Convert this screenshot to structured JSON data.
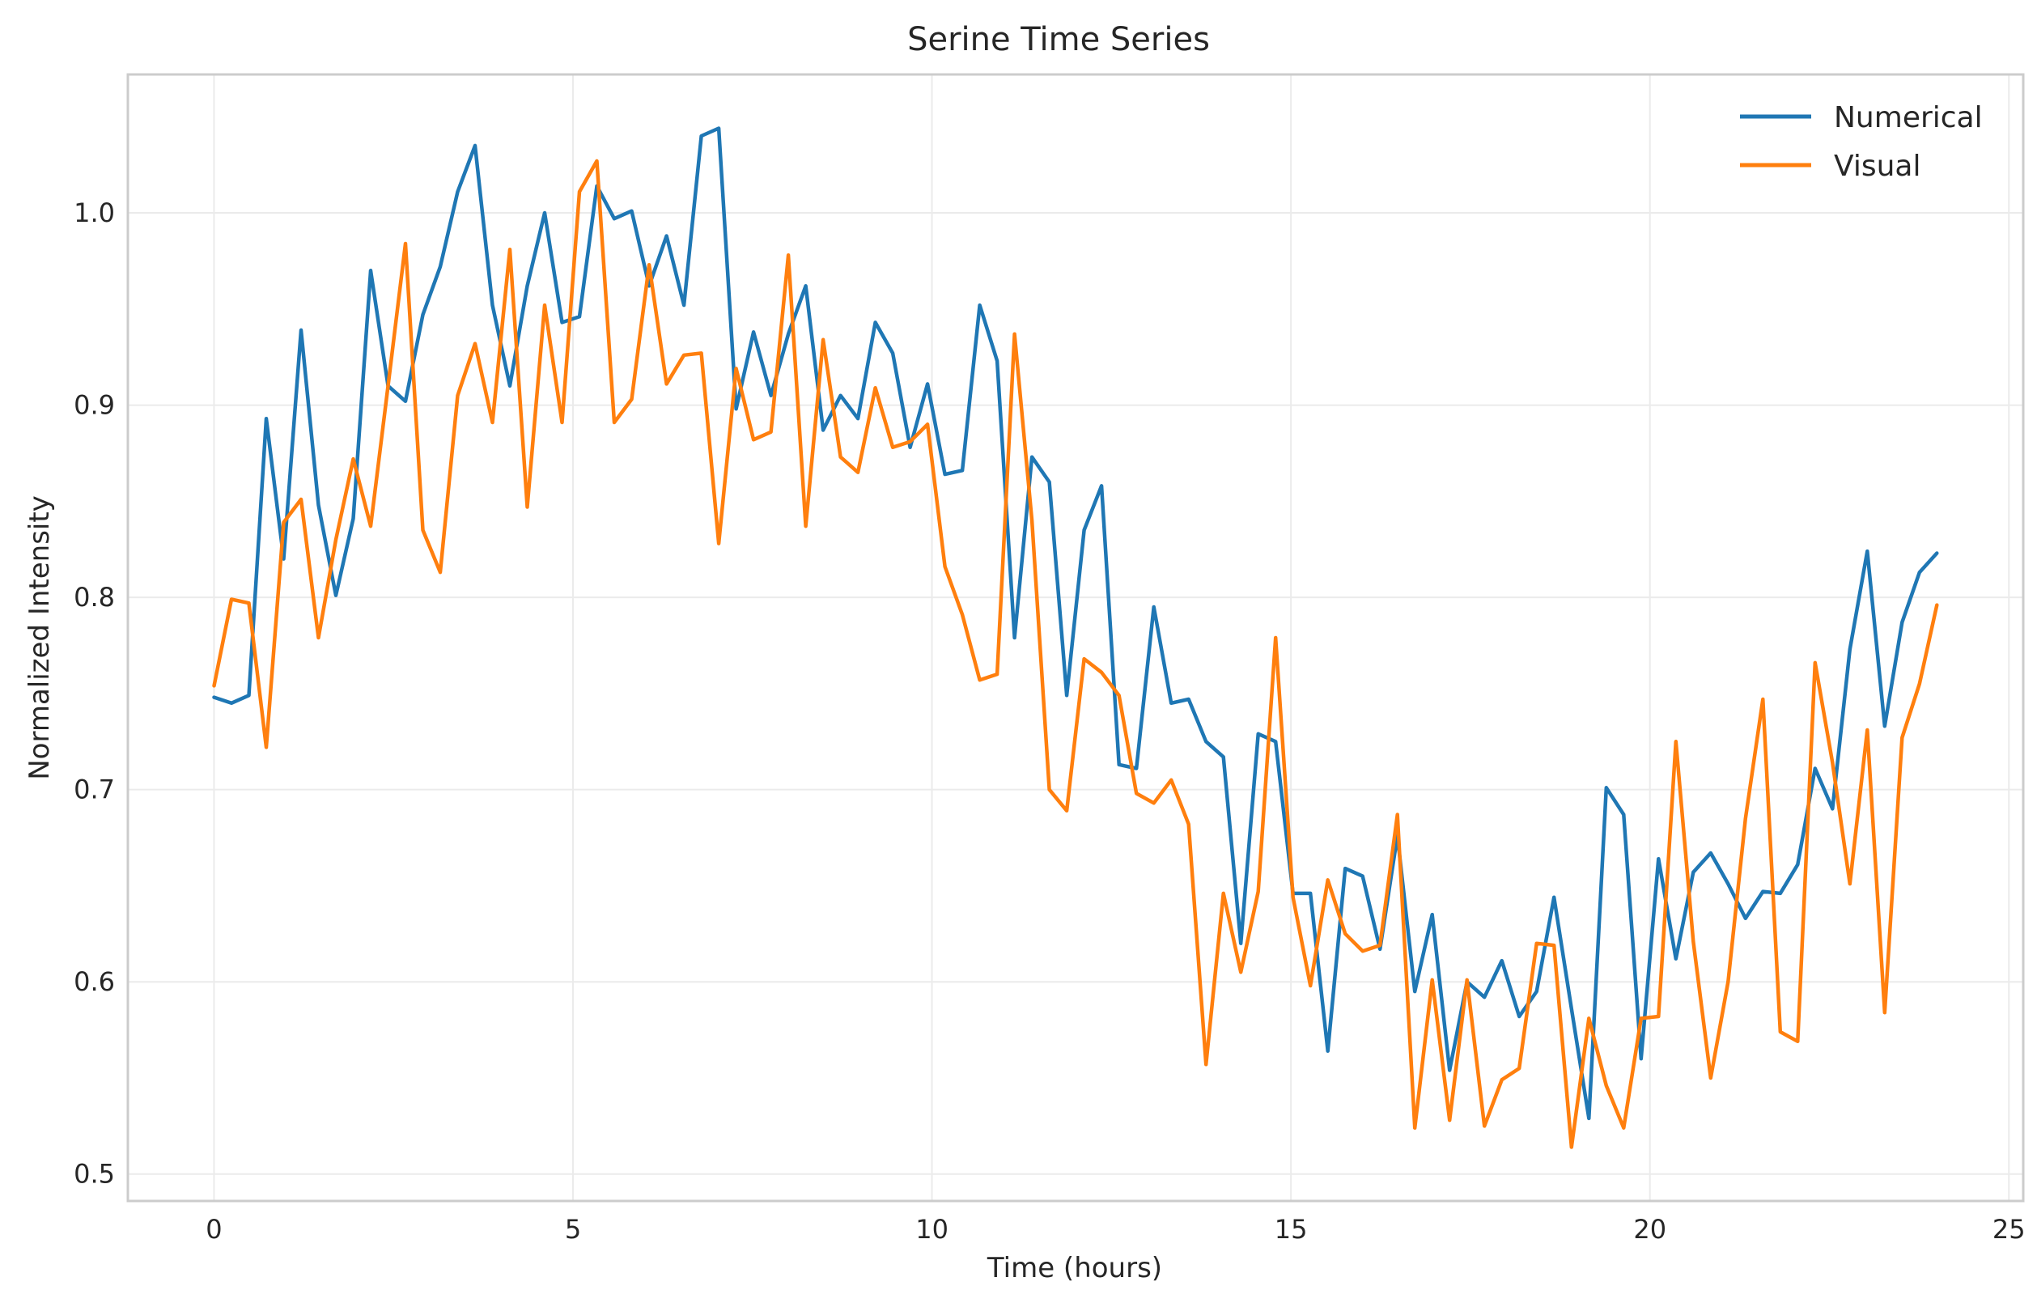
{
  "chart_data": {
    "type": "line",
    "title": "Serine Time Series",
    "xlabel": "Time (hours)",
    "ylabel": "Normalized Intensity",
    "xlim": [
      -1.2,
      25.2
    ],
    "ylim": [
      0.486,
      1.072
    ],
    "xticks": [
      0,
      5,
      10,
      15,
      20,
      25
    ],
    "xtick_labels": [
      "0",
      "5",
      "10",
      "15",
      "20",
      "25"
    ],
    "yticks": [
      0.5,
      0.6,
      0.7,
      0.8,
      0.9,
      1.0
    ],
    "ytick_labels": [
      "0.5",
      "0.6",
      "0.7",
      "0.8",
      "0.9",
      "1.0"
    ],
    "grid": true,
    "legend_position": "top-right",
    "x_step": 0.2424,
    "series": [
      {
        "name": "Numerical",
        "color": "#1f77b4",
        "values": [
          0.748,
          0.745,
          0.749,
          0.893,
          0.82,
          0.939,
          0.848,
          0.801,
          0.841,
          0.97,
          0.91,
          0.902,
          0.947,
          0.972,
          1.011,
          1.035,
          0.952,
          0.91,
          0.962,
          1.0,
          0.943,
          0.946,
          1.014,
          0.997,
          1.001,
          0.962,
          0.988,
          0.952,
          1.04,
          1.044,
          0.898,
          0.938,
          0.905,
          0.937,
          0.962,
          0.887,
          0.905,
          0.893,
          0.943,
          0.927,
          0.878,
          0.911,
          0.864,
          0.866,
          0.952,
          0.923,
          0.779,
          0.873,
          0.86,
          0.749,
          0.835,
          0.858,
          0.713,
          0.711,
          0.795,
          0.745,
          0.747,
          0.725,
          0.717,
          0.62,
          0.729,
          0.725,
          0.646,
          0.646,
          0.564,
          0.659,
          0.655,
          0.617,
          0.676,
          0.595,
          0.635,
          0.554,
          0.6,
          0.592,
          0.611,
          0.582,
          0.595,
          0.644,
          0.586,
          0.529,
          0.701,
          0.687,
          0.56,
          0.664,
          0.612,
          0.657,
          0.667,
          0.651,
          0.633,
          0.647,
          0.646,
          0.661,
          0.711,
          0.69,
          0.773,
          0.824,
          0.733,
          0.787,
          0.813,
          0.823
        ]
      },
      {
        "name": "Visual",
        "color": "#ff7f0e",
        "values": [
          0.754,
          0.799,
          0.797,
          0.722,
          0.839,
          0.851,
          0.779,
          0.83,
          0.872,
          0.837,
          0.91,
          0.984,
          0.835,
          0.813,
          0.905,
          0.932,
          0.891,
          0.981,
          0.847,
          0.952,
          0.891,
          1.011,
          1.027,
          0.891,
          0.903,
          0.973,
          0.911,
          0.926,
          0.927,
          0.828,
          0.919,
          0.882,
          0.886,
          0.978,
          0.837,
          0.934,
          0.873,
          0.865,
          0.909,
          0.878,
          0.881,
          0.89,
          0.816,
          0.791,
          0.757,
          0.76,
          0.937,
          0.84,
          0.7,
          0.689,
          0.768,
          0.761,
          0.749,
          0.698,
          0.693,
          0.705,
          0.682,
          0.557,
          0.646,
          0.605,
          0.647,
          0.779,
          0.644,
          0.598,
          0.653,
          0.625,
          0.616,
          0.619,
          0.687,
          0.524,
          0.601,
          0.528,
          0.601,
          0.525,
          0.549,
          0.555,
          0.62,
          0.619,
          0.514,
          0.581,
          0.546,
          0.524,
          0.581,
          0.582,
          0.725,
          0.621,
          0.55,
          0.6,
          0.685,
          0.747,
          0.574,
          0.569,
          0.766,
          0.714,
          0.651,
          0.731,
          0.584,
          0.727,
          0.755,
          0.796
        ]
      }
    ]
  }
}
